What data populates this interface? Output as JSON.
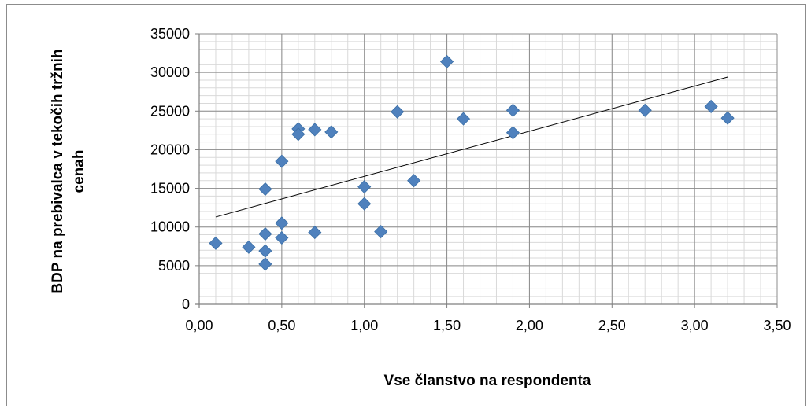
{
  "chart_data": {
    "type": "scatter",
    "title": "",
    "xlabel": "Vse članstvo na respondenta",
    "ylabel_lines": [
      "BDP na prebivalca v tekočih tržnih",
      "cenah"
    ],
    "xlim": [
      0,
      3.5
    ],
    "ylim": [
      0,
      35000
    ],
    "x_ticks": [
      0,
      0.5,
      1,
      1.5,
      2,
      2.5,
      3,
      3.5
    ],
    "x_tick_labels": [
      "0,00",
      "0,50",
      "1,00",
      "1,50",
      "2,00",
      "2,50",
      "3,00",
      "3,50"
    ],
    "y_ticks": [
      0,
      5000,
      10000,
      15000,
      20000,
      25000,
      30000,
      35000
    ],
    "y_tick_labels": [
      "0",
      "5000",
      "10000",
      "15000",
      "20000",
      "25000",
      "30000",
      "35000"
    ],
    "grid": true,
    "marker": "diamond",
    "marker_color": "#4f81bd",
    "trendline_color": "#000000",
    "points": [
      {
        "x": 0.1,
        "y": 7900
      },
      {
        "x": 0.3,
        "y": 7400
      },
      {
        "x": 0.4,
        "y": 14900
      },
      {
        "x": 0.4,
        "y": 9100
      },
      {
        "x": 0.4,
        "y": 6900
      },
      {
        "x": 0.4,
        "y": 5200
      },
      {
        "x": 0.5,
        "y": 18500
      },
      {
        "x": 0.5,
        "y": 10500
      },
      {
        "x": 0.5,
        "y": 8600
      },
      {
        "x": 0.6,
        "y": 22700
      },
      {
        "x": 0.6,
        "y": 22000
      },
      {
        "x": 0.7,
        "y": 22600
      },
      {
        "x": 0.7,
        "y": 9300
      },
      {
        "x": 0.8,
        "y": 22300
      },
      {
        "x": 1.0,
        "y": 15200
      },
      {
        "x": 1.0,
        "y": 13000
      },
      {
        "x": 1.1,
        "y": 9400
      },
      {
        "x": 1.2,
        "y": 24900
      },
      {
        "x": 1.3,
        "y": 16000
      },
      {
        "x": 1.5,
        "y": 31400
      },
      {
        "x": 1.6,
        "y": 24000
      },
      {
        "x": 1.9,
        "y": 25100
      },
      {
        "x": 1.9,
        "y": 22200
      },
      {
        "x": 2.7,
        "y": 25100
      },
      {
        "x": 3.1,
        "y": 25600
      },
      {
        "x": 3.2,
        "y": 24100
      }
    ],
    "trendline": {
      "x": [
        0.1,
        3.2
      ],
      "y": [
        11300,
        29400
      ]
    }
  }
}
